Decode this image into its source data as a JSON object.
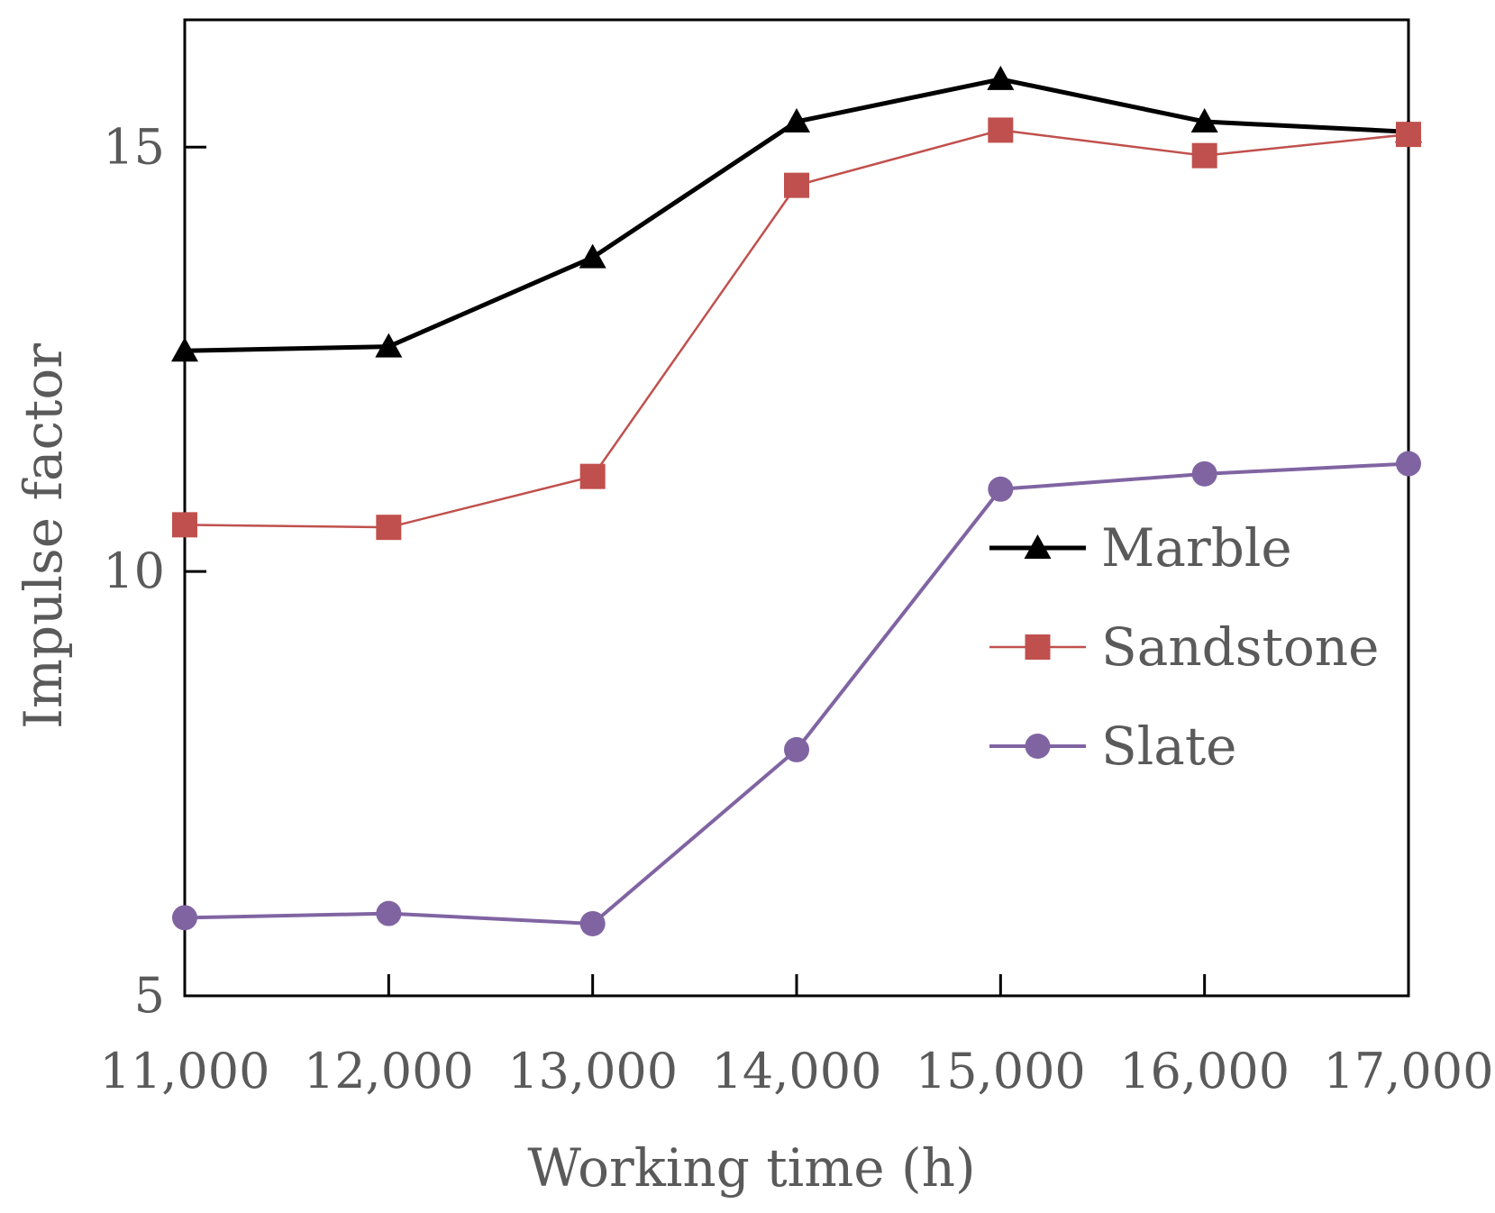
{
  "chart_data": {
    "type": "line",
    "title": "",
    "xlabel": "Working time (h)",
    "ylabel": "Impulse factor",
    "x": [
      11000,
      12000,
      13000,
      14000,
      15000,
      16000,
      17000
    ],
    "x_tick_labels": [
      "11,000",
      "12,000",
      "13,000",
      "14,000",
      "15,000",
      "16,000",
      "17,000"
    ],
    "xlim": [
      11000,
      17000
    ],
    "ylim": [
      5,
      16.5
    ],
    "y_ticks": [
      5,
      10,
      15
    ],
    "y_tick_labels": [
      "5",
      "10",
      "15"
    ],
    "grid": false,
    "legend_position": "center-right",
    "series": [
      {
        "name": "Marble",
        "marker": "triangle",
        "color": "#000000",
        "values": [
          12.6,
          12.65,
          13.7,
          15.3,
          15.8,
          15.3,
          15.18
        ]
      },
      {
        "name": "Sandstone",
        "marker": "square",
        "color": "#c0504d",
        "values": [
          10.55,
          10.52,
          11.12,
          14.55,
          15.2,
          14.9,
          15.15
        ]
      },
      {
        "name": "Slate",
        "marker": "circle",
        "color": "#8064a2",
        "values": [
          5.92,
          5.97,
          5.85,
          7.9,
          10.97,
          11.15,
          11.27
        ]
      }
    ]
  }
}
